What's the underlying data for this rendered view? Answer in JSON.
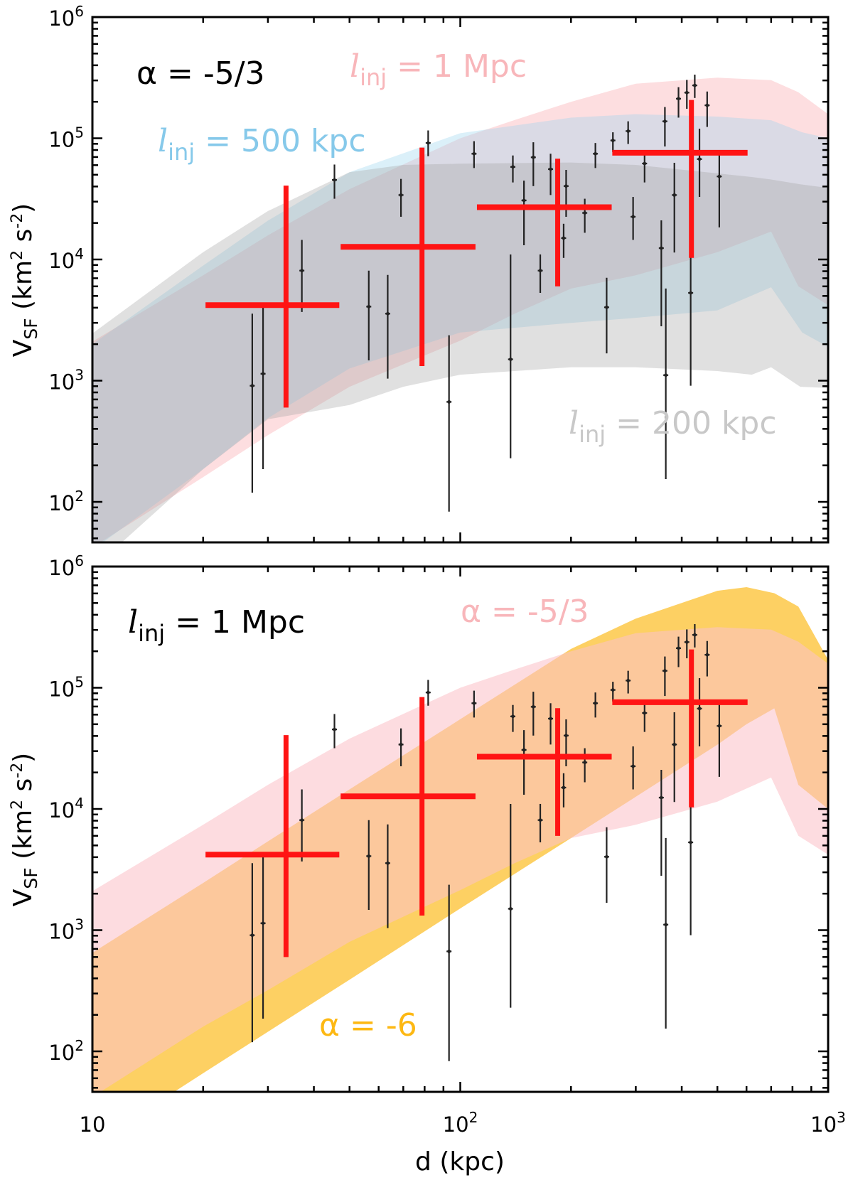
{
  "chart_data": {
    "type": "scatter",
    "xscale": "log",
    "yscale": "log",
    "xlim": [
      10,
      1000
    ],
    "ylim": [
      46,
      1000000
    ],
    "grid": false,
    "xlabel": "d (kpc)",
    "ylabel": {
      "main": "V",
      "sub": "SF",
      "pre": " (km",
      "sup1": "2",
      "mid": " s",
      "sup2": "-2",
      "post": ")"
    },
    "x_ticks": [
      {
        "value": 10,
        "base": "10",
        "exp": ""
      },
      {
        "value": 100,
        "base": "10",
        "exp": "2"
      },
      {
        "value": 1000,
        "base": "10",
        "exp": "3"
      }
    ],
    "y_ticks": [
      {
        "value": 100,
        "base": "10",
        "exp": "2"
      },
      {
        "value": 1000,
        "base": "10",
        "exp": "3"
      },
      {
        "value": 10000,
        "base": "10",
        "exp": "4"
      },
      {
        "value": 100000,
        "base": "10",
        "exp": "5"
      },
      {
        "value": 1000000,
        "base": "10",
        "exp": "6"
      }
    ],
    "points": {
      "d": [
        27.2,
        29.1,
        37.1,
        45.5,
        56.4,
        63.5,
        69,
        81.8,
        93.2,
        109,
        137,
        139,
        149,
        158,
        165,
        176,
        191,
        194,
        218,
        233,
        250,
        260,
        286,
        295,
        317,
        352,
        360,
        362,
        382,
        392,
        413,
        423,
        434,
        447,
        469,
        506
      ],
      "v": [
        908,
        1140,
        8090,
        45300,
        4080,
        3570,
        34000,
        91400,
        668,
        74500,
        1500,
        58000,
        30700,
        69600,
        8090,
        55600,
        15000,
        40300,
        24200,
        74500,
        4030,
        95900,
        114600,
        22500,
        61900,
        12400,
        138000,
        1110,
        34000,
        212000,
        238000,
        5300,
        273000,
        67300,
        187000,
        48400
      ],
      "v_low": [
        119,
        186,
        3690,
        31700,
        1470,
        1040,
        22500,
        71100,
        83,
        56800,
        229,
        43200,
        13100,
        40300,
        5300,
        34000,
        10300,
        22500,
        16600,
        56800,
        1680,
        77100,
        89700,
        14500,
        43200,
        2810,
        85500,
        154,
        11400,
        148000,
        175000,
        908,
        215000,
        32800,
        124000,
        18400
      ],
      "v_high": [
        3570,
        4230,
        14500,
        60700,
        8090,
        7450,
        46200,
        116000,
        2370,
        94600,
        11000,
        72100,
        44700,
        92700,
        11000,
        74500,
        19700,
        54800,
        31700,
        91400,
        7060,
        112000,
        138000,
        32800,
        79800,
        21000,
        181000,
        5760,
        62800,
        264000,
        303000,
        11400,
        335000,
        120000,
        243000,
        79800
      ],
      "color": "#222222"
    },
    "binned": {
      "d": [
        33.6,
        78.7,
        184,
        425
      ],
      "d_low": [
        20.3,
        47.3,
        111,
        259
      ],
      "d_high": [
        46.9,
        110,
        258,
        604
      ],
      "v": [
        4200,
        12700,
        27000,
        75900
      ],
      "v_low": [
        600,
        1320,
        6000,
        10300
      ],
      "v_high": [
        40700,
        83800,
        67800,
        207000
      ],
      "color": "#ff1414"
    },
    "panels": [
      {
        "id": "top",
        "bands": [
          {
            "label": "l_inj = 1 Mpc",
            "color": "#fddee0",
            "opacity": 1,
            "d": [
              10,
              20,
              30,
              50,
              100,
              140,
              200,
              300,
              500,
              700,
              830,
              1000
            ],
            "upper": [
              2100,
              7400,
              15800,
              38000,
              100000,
              141000,
              200000,
              282000,
              316000,
              302000,
              240000,
              158000
            ],
            "lower": [
              42,
              160,
              355,
              890,
              2140,
              3550,
              5750,
              7400,
              11500,
              17000,
              6000,
              4200
            ]
          },
          {
            "label": "l_inj = 500 kpc",
            "color": "#98d4ee",
            "opacity": 0.35,
            "d": [
              10,
              20,
              30,
              50,
              100,
              200,
              300,
              500,
              700,
              850,
              1000
            ],
            "upper": [
              2000,
              8900,
              20900,
              52500,
              110000,
              148000,
              158000,
              151000,
              141000,
              112000,
              100000
            ],
            "lower": [
              40,
              186,
              490,
              1260,
              2500,
              3000,
              3300,
              3800,
              5900,
              2500,
              1900
            ]
          },
          {
            "label": "l_inj = 200 kpc",
            "color": "#a0a0a0",
            "opacity": 0.33,
            "d": [
              10,
              20,
              30,
              50,
              70,
              100,
              200,
              300,
              500,
              620,
              700,
              840,
              1000
            ],
            "upper": [
              2450,
              11500,
              25100,
              52500,
              60300,
              61700,
              63100,
              60300,
              51300,
              47900,
              45700,
              41700,
              38900
            ],
            "lower": [
              28,
              186,
              480,
              630,
              890,
              1120,
              1290,
              1290,
              1200,
              1120,
              1290,
              890,
              870
            ]
          }
        ],
        "annotations": [
          {
            "id": "alpha",
            "kind": "plain",
            "text": "α = -5/3",
            "color": "#000000"
          },
          {
            "id": "l1mpc",
            "kind": "linj",
            "l": "l",
            "sub": "inj",
            "text": " = 1 Mpc",
            "color": "#f8b6ba"
          },
          {
            "id": "l500",
            "kind": "linj",
            "l": "l",
            "sub": "inj",
            "text": " = 500 kpc",
            "color": "#86c9ea"
          },
          {
            "id": "l200",
            "kind": "linj",
            "l": "l",
            "sub": "inj",
            "text": " = 200 kpc",
            "color": "#c8c8c8"
          }
        ]
      },
      {
        "id": "bottom",
        "bands": [
          {
            "label": "α = -6",
            "color": "#fdd063",
            "opacity": 1,
            "d": [
              10,
              20,
              30,
              50,
              100,
              200,
              300,
              500,
              600,
              714,
              830,
              1000
            ],
            "upper": [
              650,
              2450,
              5400,
              14500,
              55000,
              209000,
              372000,
              631000,
              676000,
              603000,
              468000,
              170000
            ],
            "lower": [
              17,
              66,
              145,
              390,
              1510,
              5750,
              12600,
              33900,
              50000,
              67600,
              15800,
              10000
            ]
          },
          {
            "label": "α = -5/3",
            "color": "#fbc2c9",
            "opacity": 0.57,
            "d": [
              10,
              20,
              30,
              50,
              100,
              140,
              200,
              300,
              500,
              700,
              830,
              1000
            ],
            "upper": [
              2100,
              7400,
              15800,
              38000,
              100000,
              141000,
              200000,
              282000,
              316000,
              302000,
              240000,
              158000
            ],
            "lower": [
              42,
              160,
              320,
              800,
              2140,
              3550,
              5750,
              7400,
              11500,
              18200,
              6000,
              4200
            ]
          }
        ],
        "annotations": [
          {
            "id": "l1mpc",
            "kind": "linj",
            "l": "l",
            "sub": "inj",
            "text": " = 1 Mpc",
            "color": "#000000"
          },
          {
            "id": "alpha53",
            "kind": "plain",
            "text": "α = -5/3",
            "color": "#f8b6ba"
          },
          {
            "id": "alpha6",
            "kind": "plain",
            "text": "α = -6",
            "color": "#fdb813"
          }
        ]
      }
    ]
  }
}
